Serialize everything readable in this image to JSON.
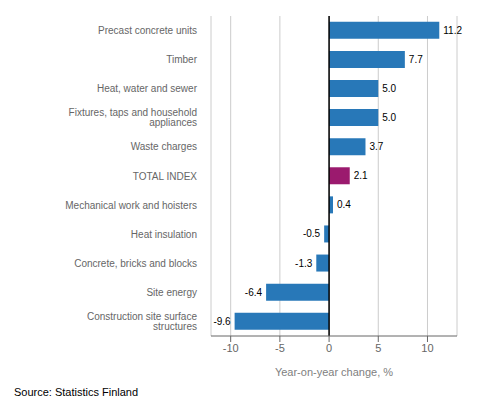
{
  "chart_data": {
    "type": "bar",
    "orientation": "horizontal",
    "categories": [
      "Construction site surface structures",
      "Site energy",
      "Concrete, bricks and blocks",
      "Heat insulation",
      "Mechanical work and hoisters",
      "TOTAL INDEX",
      "Waste charges",
      "Fixtures, taps and household appliances",
      "Heat, water and sewer",
      "Timber",
      "Precast concrete units"
    ],
    "values": [
      -9.6,
      -6.4,
      -1.3,
      -0.5,
      0.4,
      2.1,
      3.7,
      5.0,
      5.0,
      7.7,
      11.2
    ],
    "value_labels": [
      "-9.6",
      "-6.4",
      "-1.3",
      "-0.5",
      "0.4",
      "2.1",
      "3.7",
      "5.0",
      "5.0",
      "7.7",
      "11.2"
    ],
    "colors": [
      "#2878b8",
      "#2878b8",
      "#2878b8",
      "#2878b8",
      "#2878b8",
      "#9b1a6e",
      "#2878b8",
      "#2878b8",
      "#2878b8",
      "#2878b8",
      "#2878b8"
    ],
    "xlabel": "Year-on-year change, %",
    "xlim": [
      -12,
      13
    ],
    "xticks": [
      -10,
      -5,
      0,
      5,
      10
    ],
    "grid": true,
    "data_labels": true,
    "annotations": [
      "Source: Statistics Finland"
    ]
  }
}
